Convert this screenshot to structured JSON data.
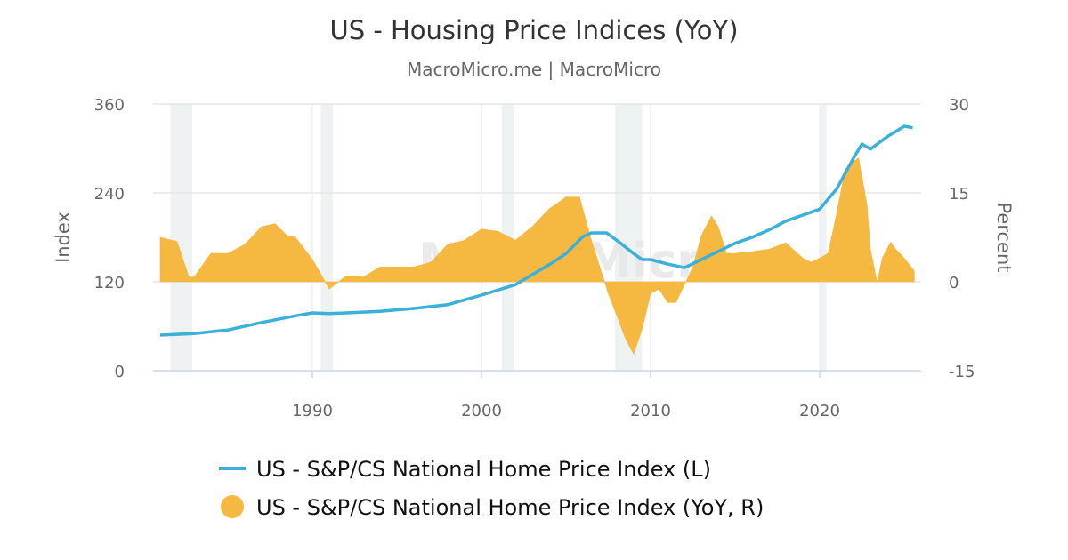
{
  "chart_data": {
    "type": "line",
    "title": "US - Housing Price Indices (YoY)",
    "subtitle": "MacroMicro.me | MacroMicro",
    "watermark": "MacroMicro",
    "grid": true,
    "x_axis": {
      "ticks": [
        "1990",
        "2000",
        "2010",
        "2020"
      ],
      "range": [
        1980.5,
        2025.9
      ]
    },
    "y_left": {
      "title": "Index",
      "ticks": [
        "0",
        "120",
        "240",
        "360"
      ],
      "range": [
        0,
        360
      ]
    },
    "y_right": {
      "title": "Percent",
      "ticks": [
        "-15",
        "0",
        "15",
        "30"
      ],
      "range": [
        -15,
        30
      ]
    },
    "recessions": [
      [
        1981.6,
        1982.9
      ],
      [
        1990.5,
        1991.2
      ],
      [
        2001.2,
        2001.9
      ],
      [
        2007.9,
        2009.5
      ],
      [
        2020.1,
        2020.4
      ]
    ],
    "legend_position": "bottom",
    "series": [
      {
        "name": "US - S&P/CS National Home Price Index (L)",
        "type": "line",
        "axis": "left",
        "color": "#3bb0d9",
        "x": [
          1981,
          1983,
          1985,
          1987,
          1989,
          1990,
          1991,
          1992,
          1994,
          1996,
          1998,
          2000,
          2002,
          2004,
          2005,
          2006,
          2006.5,
          2007.4,
          2008,
          2009,
          2009.5,
          2010,
          2011,
          2012,
          2013,
          2014,
          2015,
          2016,
          2017,
          2018,
          2019,
          2020,
          2021,
          2022,
          2022.5,
          2023,
          2024,
          2025,
          2025.5
        ],
        "y": [
          48,
          50,
          55,
          65,
          74,
          78,
          77,
          78,
          80,
          84,
          89,
          102,
          116,
          143,
          158,
          181,
          186,
          186,
          176,
          158,
          150,
          150,
          144,
          139,
          150,
          161,
          172,
          180,
          190,
          202,
          210,
          218,
          245,
          287,
          306,
          299,
          316,
          330,
          328
        ]
      },
      {
        "name": "US - S&P/CS National Home Price Index (YoY, R)",
        "type": "bar",
        "axis": "right",
        "color": "#f5b942",
        "x": [
          1981,
          1982,
          1982.7,
          1983,
          1984,
          1985,
          1986,
          1987,
          1987.8,
          1988.5,
          1989,
          1990,
          1991,
          1992,
          1993,
          1994,
          1995,
          1996,
          1997,
          1998,
          1999,
          2000,
          2001,
          2002,
          2003,
          2004,
          2005,
          2005.8,
          2006.5,
          2007,
          2007.5,
          2008,
          2008.5,
          2009,
          2009.5,
          2010,
          2010.5,
          2011,
          2011.5,
          2012,
          2012.5,
          2013,
          2013.6,
          2014,
          2014.5,
          2015,
          2016,
          2017,
          2018,
          2019,
          2019.5,
          2020,
          2020.5,
          2021,
          2021.5,
          2022,
          2022.3,
          2022.8,
          2023,
          2023.4,
          2023.7,
          2024.2,
          2024.5,
          2025,
          2025.6
        ],
        "y": [
          7.5,
          6.8,
          0.8,
          0.8,
          4.8,
          4.8,
          6.3,
          9.3,
          9.8,
          7.8,
          7.5,
          3.8,
          -1.2,
          1.0,
          0.8,
          2.5,
          2.5,
          2.5,
          3.3,
          6.3,
          7.0,
          8.9,
          8.5,
          7.0,
          9.3,
          12.3,
          14.3,
          14.3,
          7.0,
          2.5,
          -2.0,
          -5.7,
          -9.5,
          -12.2,
          -8.0,
          -2.0,
          -1.2,
          -3.5,
          -3.5,
          -0.5,
          2.5,
          7.8,
          11.1,
          9.3,
          4.8,
          4.8,
          5.1,
          5.5,
          6.6,
          4.0,
          3.3,
          4.0,
          4.8,
          11.5,
          19.0,
          20.3,
          20.9,
          13.0,
          5.5,
          -0.1,
          4.0,
          6.7,
          5.5,
          4.0,
          1.8
        ]
      }
    ]
  }
}
